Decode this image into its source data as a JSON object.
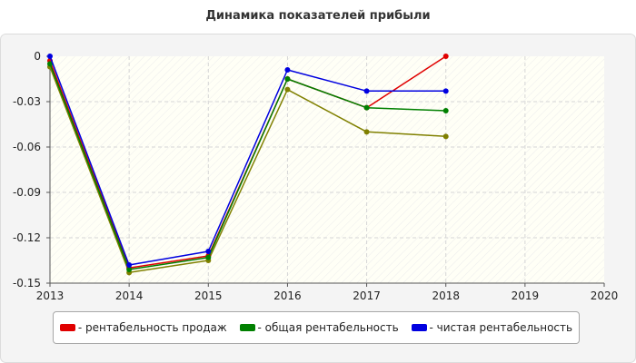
{
  "chart_data": {
    "type": "line",
    "title": "Динамика показателей прибыли",
    "x_ticks": [
      "2013",
      "2014",
      "2015",
      "2016",
      "2017",
      "2018",
      "2019",
      "2020"
    ],
    "xlim": [
      2013,
      2020
    ],
    "y_ticks": [
      "0",
      "-0.03",
      "-0.06",
      "-0.09",
      "-0.12",
      "-0.15"
    ],
    "ylim": [
      -0.15,
      0
    ],
    "grid": true,
    "legend_position": "bottom",
    "series": [
      {
        "name": "- рентабельность продаж",
        "color": "#e00000",
        "x": [
          2013,
          2014,
          2015,
          2016,
          2017,
          2018
        ],
        "y": [
          -0.003,
          -0.14,
          -0.132,
          -0.015,
          -0.034,
          0.0
        ]
      },
      {
        "name": "- общая рентабельность",
        "color": "#008000",
        "x": [
          2013,
          2014,
          2015,
          2016,
          2017,
          2018
        ],
        "y": [
          -0.005,
          -0.141,
          -0.133,
          -0.015,
          -0.034,
          -0.036
        ]
      },
      {
        "name": "- чистая рентабельность",
        "color": "#0000e0",
        "x": [
          2013,
          2014,
          2015,
          2016,
          2017,
          2018
        ],
        "y": [
          0.0,
          -0.138,
          -0.129,
          -0.009,
          -0.023,
          -0.023
        ]
      },
      {
        "color": "#808000",
        "x": [
          2013,
          2014,
          2015,
          2016,
          2017,
          2018
        ],
        "y": [
          -0.007,
          -0.143,
          -0.135,
          -0.022,
          -0.05,
          -0.053
        ]
      }
    ]
  }
}
